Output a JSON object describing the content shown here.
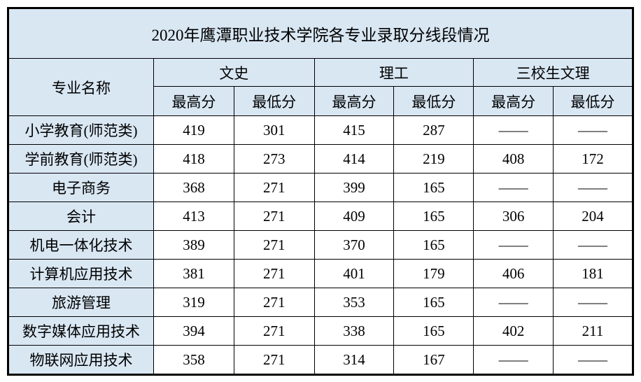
{
  "title": "2020年鹰潭职业技术学院各专业录取分线段情况",
  "colors": {
    "header_bg": "#d9e7f3",
    "cell_bg": "#ffffff",
    "border": "#000000",
    "text": "#000000"
  },
  "table": {
    "corner_header": "专业名称",
    "group_headers": [
      "文史",
      "理工",
      "三校生文理"
    ],
    "sub_headers": [
      "最高分",
      "最低分",
      "最高分",
      "最低分",
      "最高分",
      "最低分"
    ],
    "rows": [
      {
        "major": "小学教育(师范类)",
        "scores": [
          "419",
          "301",
          "415",
          "287",
          "——",
          "——"
        ]
      },
      {
        "major": "学前教育(师范类)",
        "scores": [
          "418",
          "273",
          "414",
          "219",
          "408",
          "172"
        ]
      },
      {
        "major": "电子商务",
        "scores": [
          "368",
          "271",
          "399",
          "165",
          "——",
          "——"
        ]
      },
      {
        "major": "会计",
        "scores": [
          "413",
          "271",
          "409",
          "165",
          "306",
          "204"
        ]
      },
      {
        "major": "机电一体化技术",
        "scores": [
          "389",
          "271",
          "370",
          "165",
          "——",
          "——"
        ]
      },
      {
        "major": "计算机应用技术",
        "scores": [
          "381",
          "271",
          "401",
          "179",
          "406",
          "181"
        ]
      },
      {
        "major": "旅游管理",
        "scores": [
          "319",
          "271",
          "353",
          "165",
          "——",
          "——"
        ]
      },
      {
        "major": "数字媒体应用技术",
        "scores": [
          "394",
          "271",
          "338",
          "165",
          "402",
          "211"
        ]
      },
      {
        "major": "物联网应用技术",
        "scores": [
          "358",
          "271",
          "314",
          "167",
          "——",
          "——"
        ]
      }
    ]
  },
  "chart_data": {
    "type": "table",
    "title": "2020年鹰潭职业技术学院各专业录取分线段情况",
    "columns": [
      "专业名称",
      "文史-最高分",
      "文史-最低分",
      "理工-最高分",
      "理工-最低分",
      "三校生文理-最高分",
      "三校生文理-最低分"
    ],
    "rows": [
      [
        "小学教育(师范类)",
        419,
        301,
        415,
        287,
        null,
        null
      ],
      [
        "学前教育(师范类)",
        418,
        273,
        414,
        219,
        408,
        172
      ],
      [
        "电子商务",
        368,
        271,
        399,
        165,
        null,
        null
      ],
      [
        "会计",
        413,
        271,
        409,
        165,
        306,
        204
      ],
      [
        "机电一体化技术",
        389,
        271,
        370,
        165,
        null,
        null
      ],
      [
        "计算机应用技术",
        381,
        271,
        401,
        179,
        406,
        181
      ],
      [
        "旅游管理",
        319,
        271,
        353,
        165,
        null,
        null
      ],
      [
        "数字媒体应用技术",
        394,
        271,
        338,
        165,
        402,
        211
      ],
      [
        "物联网应用技术",
        358,
        271,
        314,
        167,
        null,
        null
      ]
    ],
    "notes": "null cells rendered as —— (no admissions in that category)"
  }
}
